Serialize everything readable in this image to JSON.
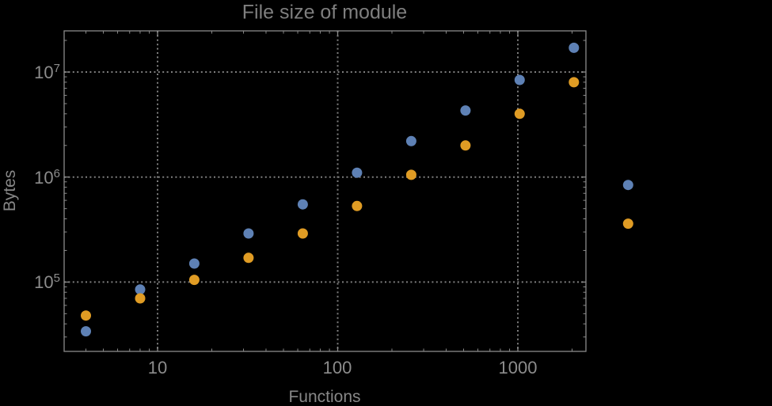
{
  "page": {
    "background_color": "#000000",
    "text_color": "#8c8c8c"
  },
  "chart_data": {
    "type": "scatter",
    "title": "File size of module",
    "xlabel": "Functions",
    "ylabel": "Bytes",
    "log_x": true,
    "log_y": true,
    "grid": "dotted",
    "legend": "none",
    "xlim": [
      3.03,
      2388
    ],
    "ylim": [
      21900,
      24600000
    ],
    "x_tick_values": [
      10,
      100,
      1000
    ],
    "x_tick_labels": [
      "10",
      "100",
      "1000"
    ],
    "y_tick_values": [
      100000,
      1000000,
      10000000
    ],
    "y_tick_labels": [
      {
        "base": "10",
        "exp": "5"
      },
      {
        "base": "10",
        "exp": "6"
      },
      {
        "base": "10",
        "exp": "7"
      }
    ],
    "colors": {
      "series_blue": "#5E81B5",
      "series_orange": "#E09C24",
      "frame": "#8a8a8a",
      "gridline": "#7e7e7e",
      "title_text": "#7f7f7f"
    },
    "series": [
      {
        "name": "series-1-blue",
        "color": "#5E81B5",
        "points": [
          [
            4,
            34000
          ],
          [
            8,
            85000
          ],
          [
            16,
            150000
          ],
          [
            32,
            290000
          ],
          [
            64,
            550000
          ],
          [
            128,
            1100000
          ],
          [
            256,
            2200000
          ],
          [
            512,
            4300000
          ],
          [
            1024,
            8400000
          ],
          [
            2048,
            17000000
          ],
          [
            4096,
            840000
          ]
        ]
      },
      {
        "name": "series-2-orange",
        "color": "#E09C24",
        "points": [
          [
            4,
            48000
          ],
          [
            8,
            70000
          ],
          [
            16,
            105000
          ],
          [
            32,
            170000
          ],
          [
            64,
            290000
          ],
          [
            128,
            530000
          ],
          [
            256,
            1050000
          ],
          [
            512,
            2000000
          ],
          [
            1024,
            4000000
          ],
          [
            2048,
            8000000
          ],
          [
            4096,
            360000
          ]
        ]
      }
    ]
  }
}
